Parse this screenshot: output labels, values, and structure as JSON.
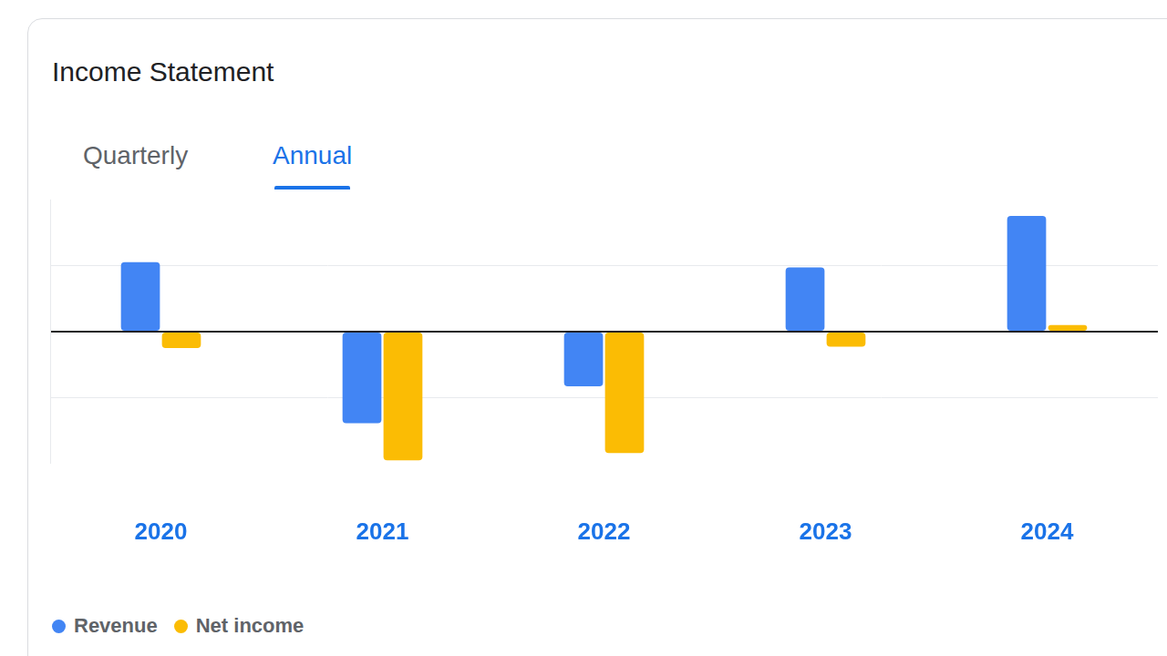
{
  "header": {
    "title": "Income Statement",
    "tabs": [
      "Quarterly",
      "Annual"
    ],
    "active_tab": "Annual"
  },
  "chart_data": {
    "type": "bar",
    "categories": [
      "2020",
      "2021",
      "2022",
      "2023",
      "2024"
    ],
    "series": [
      {
        "name": "Revenue",
        "color": "#4285f4",
        "values": [
          1.05,
          -1.39,
          -0.83,
          0.97,
          1.75
        ]
      },
      {
        "name": "Net income",
        "color": "#fbbc04",
        "values": [
          -0.25,
          -1.95,
          -1.84,
          -0.23,
          0.1
        ]
      }
    ],
    "ylim": [
      -2,
      2
    ],
    "yticks": [
      -1,
      0,
      1
    ],
    "grid": true,
    "tick_labels": "x",
    "legend": "bottom"
  }
}
